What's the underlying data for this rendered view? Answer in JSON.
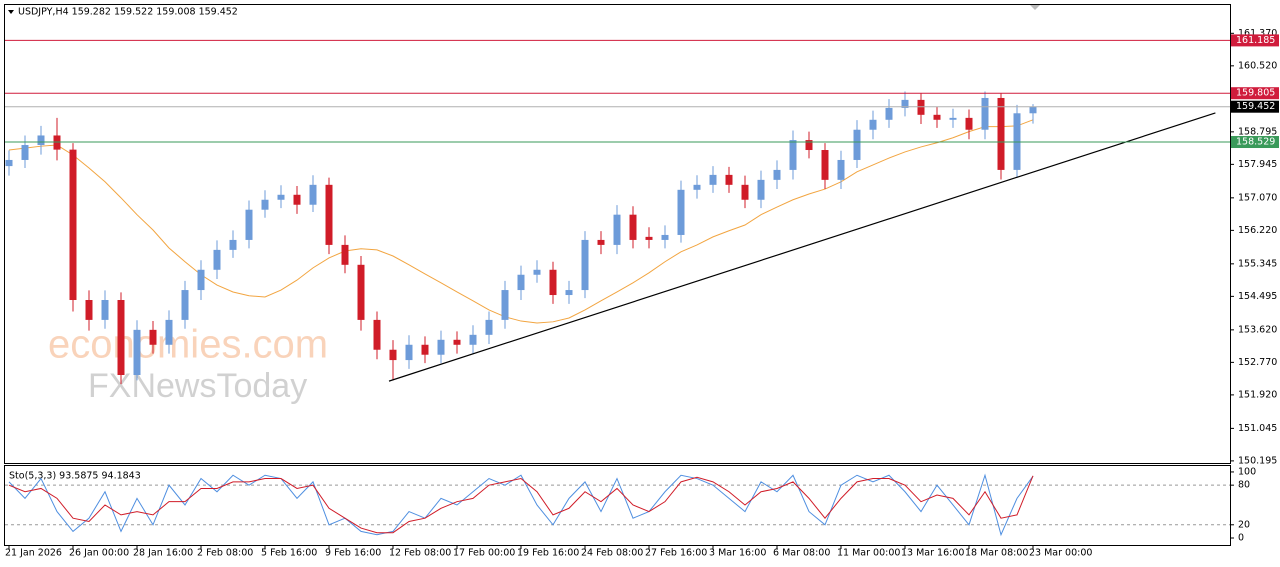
{
  "chart_data": [
    {
      "type": "candlestick",
      "title": "USDJPY,H4 159.282 159.522 159.008 159.452",
      "watermark": [
        "economies.com",
        "FXNewsToday"
      ],
      "categories": [
        "21 Jan 2026",
        null,
        null,
        null,
        "26 Jan 00:00",
        null,
        null,
        null,
        "28 Jan 16:00",
        null,
        null,
        null,
        "2 Feb 08:00",
        null,
        null,
        null,
        "5 Feb 16:00",
        null,
        null,
        null,
        "9 Feb 16:00",
        null,
        null,
        null,
        "12 Feb 08:00",
        null,
        null,
        null,
        "17 Feb 00:00",
        null,
        null,
        null,
        "19 Feb 16:00",
        null,
        null,
        null,
        "24 Feb 08:00",
        null,
        null,
        null,
        "27 Feb 16:00",
        null,
        null,
        null,
        "3 Mar 16:00",
        null,
        null,
        null,
        "6 Mar 08:00",
        null,
        null,
        null,
        "11 Mar 00:00",
        null,
        null,
        null,
        "13 Mar 16:00",
        null,
        null,
        null,
        "18 Mar 08:00",
        null,
        null,
        null,
        "23 Mar 00:00"
      ],
      "open": [
        157.9,
        158.06,
        158.45,
        158.7,
        158.33,
        154.4,
        153.88,
        154.4,
        152.44,
        153.62,
        153.23,
        153.88,
        154.66,
        155.19,
        155.71,
        155.97,
        156.76,
        157.02,
        157.15,
        156.89,
        157.41,
        155.84,
        155.32,
        153.88,
        153.1,
        152.83,
        153.23,
        152.97,
        153.36,
        153.23,
        153.49,
        153.88,
        154.66,
        155.06,
        155.19,
        154.53,
        154.66,
        155.97,
        155.84,
        156.63,
        156.05,
        155.97,
        156.1,
        157.28,
        157.41,
        157.67,
        157.41,
        157.02,
        157.54,
        157.8,
        158.58,
        158.32,
        157.54,
        158.06,
        158.85,
        159.11,
        159.42,
        159.63,
        159.24,
        159.11,
        159.16,
        158.85,
        159.68,
        157.8,
        159.28
      ],
      "high": [
        158.31,
        158.7,
        158.95,
        159.16,
        158.5,
        154.65,
        154.65,
        154.6,
        153.87,
        153.85,
        154.13,
        154.9,
        155.44,
        155.96,
        156.22,
        157.0,
        157.27,
        157.4,
        157.38,
        157.66,
        157.6,
        156.09,
        155.55,
        154.1,
        153.35,
        153.48,
        153.45,
        153.6,
        153.58,
        153.74,
        154.1,
        154.9,
        155.3,
        155.44,
        155.4,
        154.9,
        156.2,
        156.2,
        156.88,
        156.85,
        156.3,
        156.35,
        157.52,
        157.66,
        157.9,
        157.88,
        157.65,
        157.78,
        158.05,
        158.83,
        158.8,
        158.5,
        158.3,
        159.1,
        159.35,
        159.65,
        159.85,
        159.8,
        159.45,
        159.4,
        159.38,
        159.85,
        159.8,
        159.5,
        159.52
      ],
      "low": [
        157.65,
        157.85,
        158.2,
        158.05,
        154.1,
        153.6,
        153.65,
        152.2,
        152.3,
        153.0,
        153.0,
        153.65,
        154.4,
        154.95,
        155.5,
        155.75,
        156.55,
        156.8,
        156.65,
        156.7,
        155.6,
        155.1,
        153.6,
        152.85,
        152.3,
        152.6,
        152.75,
        152.75,
        153.0,
        153.0,
        153.25,
        153.65,
        154.4,
        154.85,
        154.3,
        154.3,
        154.45,
        155.6,
        155.6,
        155.75,
        155.75,
        155.75,
        155.9,
        157.05,
        157.2,
        157.2,
        156.8,
        156.8,
        157.3,
        157.55,
        158.1,
        157.3,
        157.3,
        157.85,
        158.6,
        158.9,
        159.2,
        159.0,
        158.9,
        158.9,
        158.6,
        158.6,
        157.55,
        157.6,
        159.01
      ],
      "close": [
        158.06,
        158.45,
        158.7,
        158.33,
        154.4,
        153.88,
        154.4,
        152.44,
        153.62,
        153.23,
        153.88,
        154.66,
        155.19,
        155.71,
        155.97,
        156.76,
        157.02,
        157.15,
        156.89,
        157.41,
        155.84,
        155.32,
        153.88,
        153.1,
        152.83,
        153.23,
        152.97,
        153.36,
        153.23,
        153.49,
        153.88,
        154.66,
        155.06,
        155.19,
        154.53,
        154.66,
        155.97,
        155.84,
        156.63,
        155.97,
        155.97,
        156.1,
        157.28,
        157.41,
        157.67,
        157.41,
        157.02,
        157.54,
        157.8,
        158.58,
        158.32,
        157.54,
        158.06,
        158.85,
        159.11,
        159.42,
        159.63,
        159.24,
        159.11,
        159.16,
        158.85,
        159.68,
        157.8,
        159.28,
        159.45
      ],
      "up_color": "#6d9bd9",
      "down_color": "#d01c28",
      "ma": {
        "color": "#f2a541",
        "values": [
          158.32,
          158.37,
          158.42,
          158.45,
          158.19,
          157.85,
          157.49,
          157.07,
          156.63,
          156.23,
          155.76,
          155.4,
          155.06,
          154.79,
          154.61,
          154.51,
          154.48,
          154.66,
          154.92,
          155.24,
          155.5,
          155.68,
          155.74,
          155.71,
          155.55,
          155.32,
          155.08,
          154.85,
          154.61,
          154.38,
          154.14,
          153.96,
          153.85,
          153.8,
          153.83,
          153.93,
          154.14,
          154.38,
          154.61,
          154.85,
          155.11,
          155.4,
          155.66,
          155.84,
          156.05,
          156.21,
          156.36,
          156.63,
          156.83,
          157.02,
          157.17,
          157.3,
          157.49,
          157.75,
          157.93,
          158.11,
          158.27,
          158.4,
          158.51,
          158.64,
          158.8,
          158.93,
          158.93,
          158.95,
          159.11
        ]
      },
      "trendline": {
        "color": "#000000",
        "x": [
          23.75,
          75.4
        ],
        "y": [
          152.28,
          159.29
        ]
      },
      "levels": [
        {
          "value": 161.185,
          "color": "#d01c3c"
        },
        {
          "value": 159.805,
          "color": "#d01c3c"
        },
        {
          "value": 158.529,
          "color": "#3a9a5a"
        }
      ],
      "last_price": {
        "value": 159.452,
        "color": "#000000"
      },
      "ylim": [
        150.14,
        162.11
      ],
      "yticks": [
        {
          "value": 161.37,
          "label": "161.370"
        },
        {
          "value": 160.52,
          "label": "160.520"
        },
        158.795,
        157.945,
        {
          "value": 157.07,
          "label": "157.070"
        },
        {
          "value": 156.22,
          "label": "156.220"
        },
        155.345,
        154.495,
        {
          "value": 153.62,
          "label": "153.620"
        },
        {
          "value": 152.77,
          "label": "152.770"
        },
        {
          "value": 151.92,
          "label": "151.920"
        },
        151.045,
        150.195
      ]
    },
    {
      "type": "line",
      "title": "Sto(5,3,3) 93.5875 94.1843",
      "series": [
        {
          "color": "#4f8fe0",
          "values": [
            85,
            60,
            90,
            40,
            10,
            30,
            70,
            10,
            60,
            20,
            80,
            50,
            90,
            70,
            95,
            80,
            95,
            90,
            60,
            85,
            20,
            30,
            10,
            5,
            10,
            40,
            30,
            60,
            50,
            70,
            90,
            80,
            95,
            50,
            20,
            60,
            85,
            40,
            90,
            30,
            40,
            70,
            95,
            90,
            80,
            60,
            40,
            85,
            70,
            95,
            40,
            20,
            80,
            95,
            85,
            95,
            70,
            40,
            80,
            50,
            20,
            95,
            5,
            60,
            93.5875
          ]
        },
        {
          "color": "#d01c28",
          "values": [
            80,
            70,
            75,
            60,
            30,
            25,
            50,
            35,
            40,
            35,
            55,
            55,
            75,
            75,
            85,
            85,
            90,
            90,
            75,
            80,
            45,
            30,
            15,
            8,
            8,
            25,
            30,
            45,
            55,
            60,
            80,
            85,
            90,
            70,
            35,
            45,
            70,
            55,
            75,
            50,
            40,
            55,
            85,
            92,
            85,
            70,
            50,
            70,
            75,
            85,
            60,
            30,
            60,
            85,
            90,
            90,
            80,
            55,
            65,
            60,
            35,
            70,
            30,
            35,
            94.1843
          ]
        }
      ],
      "levels": [
        20,
        80
      ],
      "ylim": [
        -10.6,
        109
      ],
      "yticks": [
        0,
        20,
        80,
        100
      ]
    }
  ]
}
